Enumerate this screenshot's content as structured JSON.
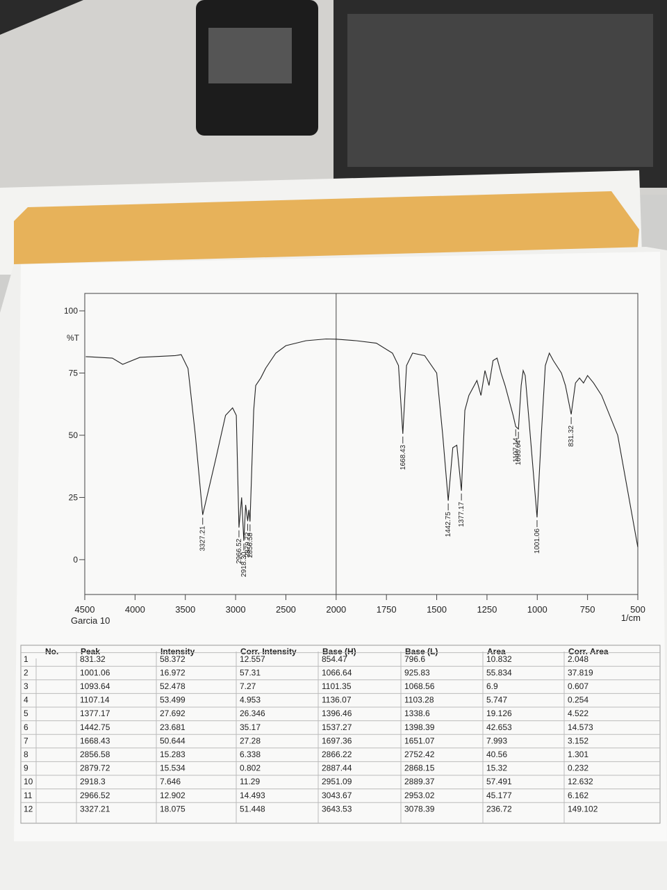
{
  "chart_data": {
    "type": "line",
    "y_label": "%T",
    "x_label": "1/cm",
    "caption": "Garcia 10",
    "color": "#222222",
    "xlim": [
      4500,
      500
    ],
    "ylim": [
      -14,
      107
    ],
    "xticks": [
      4500,
      4000,
      3500,
      3000,
      2500,
      2000,
      1750,
      1500,
      1250,
      1000,
      750,
      500
    ],
    "yticks": [
      0,
      25,
      50,
      75,
      100
    ],
    "x": [
      4490,
      4226,
      4123,
      3952,
      3600,
      3541,
      3473,
      3400,
      3327.21,
      3200,
      3100,
      3030,
      2993,
      2966.52,
      2940,
      2918.3,
      2900,
      2879.72,
      2868,
      2856.58,
      2820,
      2800,
      2750,
      2700,
      2600,
      2500,
      2300,
      2100,
      2000,
      1900,
      1800,
      1720,
      1690,
      1668.43,
      1650,
      1620,
      1560,
      1500,
      1470,
      1442.75,
      1420,
      1400,
      1377.17,
      1360,
      1340,
      1300,
      1280,
      1260,
      1240,
      1220,
      1200,
      1180,
      1160,
      1120,
      1107.14,
      1093.64,
      1080,
      1070,
      1060,
      1040,
      1001.06,
      980,
      960,
      940,
      920,
      880,
      860,
      831.32,
      810,
      790,
      770,
      750,
      720,
      680,
      600,
      500
    ],
    "values": [
      81.6,
      81,
      78.5,
      81.3,
      82,
      82.4,
      76.8,
      50,
      18,
      40,
      58,
      61,
      58,
      12.9,
      25,
      7.6,
      22,
      15.5,
      20,
      15.3,
      60,
      70,
      73,
      77,
      83,
      86,
      88,
      88.7,
      88.6,
      88,
      87,
      83,
      78,
      50.6,
      78,
      83,
      82,
      75,
      50,
      23.7,
      45,
      46,
      27.7,
      60,
      66,
      72,
      66,
      76,
      70,
      80,
      81,
      75,
      70,
      58,
      53.5,
      52.5,
      70,
      76,
      74,
      55,
      17,
      50,
      78,
      83,
      80,
      75,
      70,
      58.4,
      71,
      73,
      71,
      74,
      71,
      66,
      50,
      5
    ],
    "annotations": [
      {
        "value": 3327.21,
        "label": "3327.21"
      },
      {
        "value": 2966.52,
        "label": "2966.52"
      },
      {
        "value": 2918.3,
        "label": "2918.30"
      },
      {
        "value": 2879.72,
        "label": "2879.72"
      },
      {
        "value": 2856.58,
        "label": "2856.58"
      },
      {
        "value": 1668.43,
        "label": "1668.43"
      },
      {
        "value": 1442.75,
        "label": "1442.75"
      },
      {
        "value": 1377.17,
        "label": "1377.17"
      },
      {
        "value": 1107.14,
        "label": "1107.14"
      },
      {
        "value": 1093.64,
        "label": "1093.64"
      },
      {
        "value": 1001.06,
        "label": "1001.06"
      },
      {
        "value": 831.32,
        "label": "831.32"
      }
    ]
  },
  "table": {
    "header": [
      "No.",
      "Peak",
      "Intensity",
      "Corr. Intensity",
      "Base (H)",
      "Base (L)",
      "Area",
      "Corr. Area"
    ],
    "rows": [
      [
        "1",
        "831.32",
        "58.372",
        "12.557",
        "854.47",
        "796.6",
        "10.832",
        "2.048"
      ],
      [
        "2",
        "1001.06",
        "16.972",
        "57.31",
        "1066.64",
        "925.83",
        "55.834",
        "37.819"
      ],
      [
        "3",
        "1093.64",
        "52.478",
        "7.27",
        "1101.35",
        "1068.56",
        "6.9",
        "0.607"
      ],
      [
        "4",
        "1107.14",
        "53.499",
        "4.953",
        "1136.07",
        "1103.28",
        "5.747",
        "0.254"
      ],
      [
        "5",
        "1377.17",
        "27.692",
        "26.346",
        "1396.46",
        "1338.6",
        "19.126",
        "4.522"
      ],
      [
        "6",
        "1442.75",
        "23.681",
        "35.17",
        "1537.27",
        "1398.39",
        "42.653",
        "14.573"
      ],
      [
        "7",
        "1668.43",
        "50.644",
        "27.28",
        "1697.36",
        "1651.07",
        "7.993",
        "3.152"
      ],
      [
        "8",
        "2856.58",
        "15.283",
        "6.338",
        "2866.22",
        "2752.42",
        "40.56",
        "1.301"
      ],
      [
        "9",
        "2879.72",
        "15.534",
        "0.802",
        "2887.44",
        "2868.15",
        "15.32",
        "0.232"
      ],
      [
        "10",
        "2918.3",
        "7.646",
        "11.29",
        "2951.09",
        "2889.37",
        "57.491",
        "12.632"
      ],
      [
        "11",
        "2966.52",
        "12.902",
        "14.493",
        "3043.67",
        "2953.02",
        "45.177",
        "6.162"
      ],
      [
        "12",
        "3327.21",
        "18.075",
        "51.448",
        "3643.53",
        "3078.39",
        "236.72",
        "149.102"
      ]
    ]
  }
}
